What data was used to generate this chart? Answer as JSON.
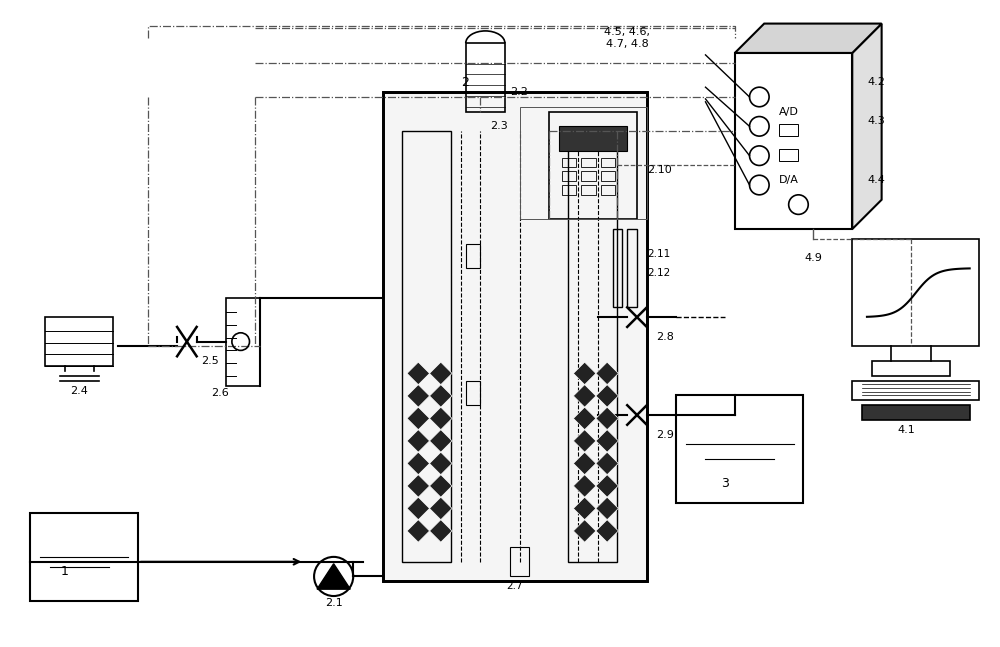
{
  "bg_color": "#ffffff",
  "line_color": "#000000",
  "dashed_color": "#555555",
  "fig_width": 10.0,
  "fig_height": 6.47,
  "labels": {
    "label_1": "1",
    "label_21": "2.1",
    "label_22": "2.2",
    "label_23": "2.3",
    "label_24": "2.4",
    "label_25": "2.5",
    "label_26": "2.6",
    "label_27": "2.7",
    "label_28": "2.8",
    "label_29": "2.9",
    "label_2": "2",
    "label_210": "2.10",
    "label_211": "2.11",
    "label_212": "2.12",
    "label_3": "3",
    "label_41": "4.1",
    "label_42": "4.2",
    "label_43": "4.3",
    "label_44": "4.4",
    "label_45678": "4.5, 4.6,\n4.7, 4.8",
    "label_49": "4.9",
    "label_AD": "A/D",
    "label_DA": "D/A"
  }
}
